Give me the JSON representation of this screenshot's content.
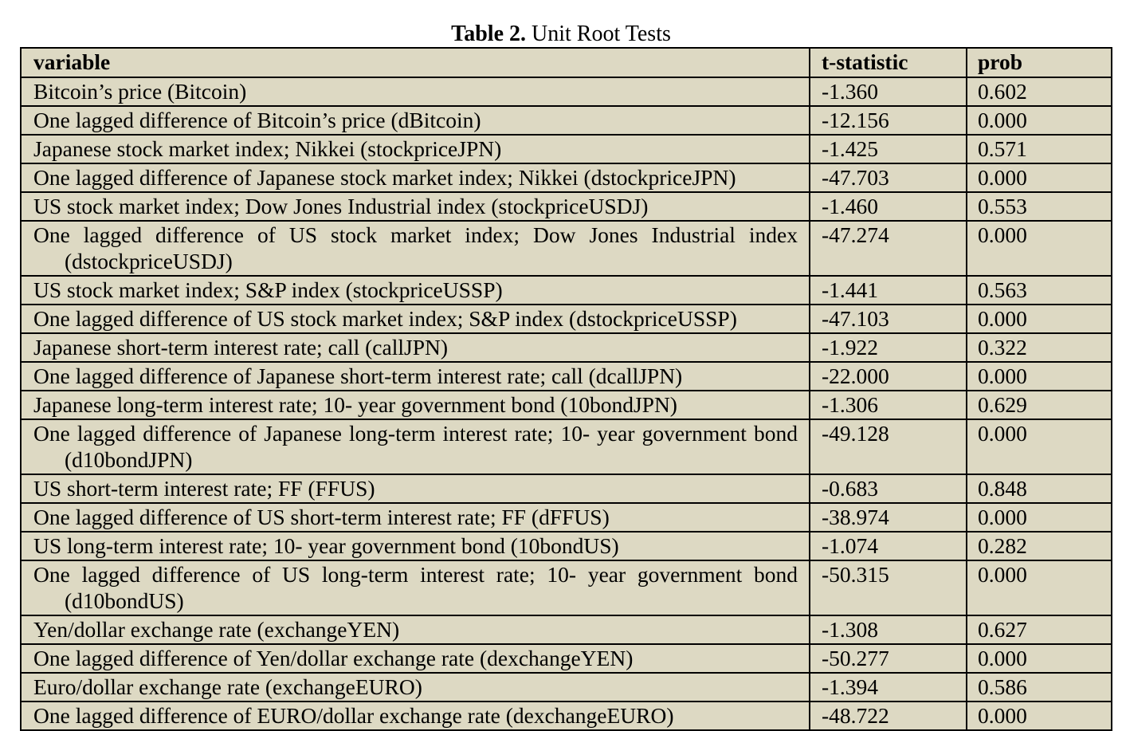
{
  "caption": {
    "label": "Table 2.",
    "title": " Unit Root Tests"
  },
  "table": {
    "headers": [
      "variable",
      "t-statistic",
      "prob"
    ],
    "rows": [
      {
        "variable": "Bitcoin’s price (Bitcoin)",
        "t": "-1.360",
        "p": "0.602"
      },
      {
        "variable": "One lagged difference of Bitcoin’s price (dBitcoin)",
        "t": "-12.156",
        "p": "0.000"
      },
      {
        "variable": "Japanese stock market index; Nikkei (stockpriceJPN)",
        "t": "-1.425",
        "p": "0.571"
      },
      {
        "variable": "One lagged difference of Japanese stock market index; Nikkei (dstockpriceJPN)",
        "t": "-47.703",
        "p": "0.000"
      },
      {
        "variable": "US stock market index; Dow Jones Industrial index (stockpriceUSDJ)",
        "t": "-1.460",
        "p": "0.553"
      },
      {
        "variable": "One lagged difference of US stock market index; Dow Jones Industrial index (dstockpriceUSDJ)",
        "t": "-47.274",
        "p": "0.000"
      },
      {
        "variable": "US stock market index; S&P index (stockpriceUSSP)",
        "t": "-1.441",
        "p": "0.563"
      },
      {
        "variable": "One lagged difference of US stock market index; S&P index (dstockpriceUSSP)",
        "t": "-47.103",
        "p": "0.000"
      },
      {
        "variable": "Japanese short-term interest rate; call (callJPN)",
        "t": "-1.922",
        "p": "0.322"
      },
      {
        "variable": "One lagged difference of Japanese short-term interest rate; call (dcallJPN)",
        "t": "-22.000",
        "p": "0.000"
      },
      {
        "variable": "Japanese long-term interest rate; 10- year government bond (10bondJPN)",
        "t": "-1.306",
        "p": "0.629"
      },
      {
        "variable": "One lagged difference of Japanese long-term interest rate; 10- year government bond (d10bondJPN)",
        "t": "-49.128",
        "p": "0.000"
      },
      {
        "variable": "US short-term interest rate; FF (FFUS)",
        "t": "-0.683",
        "p": "0.848"
      },
      {
        "variable": "One lagged difference of US short-term interest rate; FF (dFFUS)",
        "t": "-38.974",
        "p": "0.000"
      },
      {
        "variable": "US long-term interest rate; 10- year government bond (10bondUS)",
        "t": "-1.074",
        "p": "0.282"
      },
      {
        "variable": "One lagged difference of US long-term interest rate; 10- year government bond (d10bondUS)",
        "t": "-50.315",
        "p": "0.000"
      },
      {
        "variable": "Yen/dollar exchange rate (exchangeYEN)",
        "t": "-1.308",
        "p": "0.627"
      },
      {
        "variable": "One lagged difference of Yen/dollar exchange rate (dexchangeYEN)",
        "t": "-50.277",
        "p": "0.000"
      },
      {
        "variable": "Euro/dollar exchange rate (exchangeEURO)",
        "t": "-1.394",
        "p": "0.586"
      },
      {
        "variable": "One lagged difference of EURO/dollar exchange rate (dexchangeEURO)",
        "t": "-48.722",
        "p": "0.000"
      }
    ]
  },
  "colors": {
    "cell_background": "#ddd9c3",
    "border": "#000000"
  }
}
